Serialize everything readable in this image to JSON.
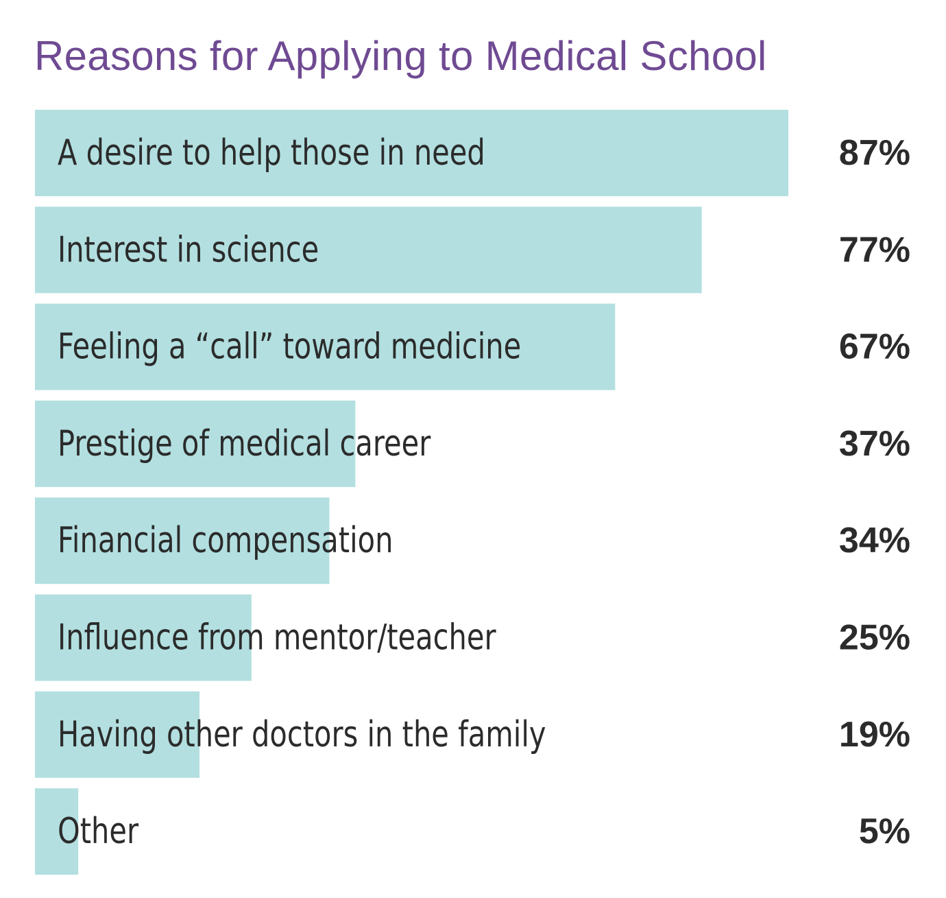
{
  "chart_data": {
    "type": "bar",
    "orientation": "horizontal",
    "title": "Reasons for Applying to Medical School",
    "categories": [
      "A desire to help those in need",
      "Interest in science",
      "Feeling a “call” toward medicine",
      "Prestige of medical career",
      "Financial compensation",
      "Influence from mentor/teacher",
      "Having other doctors in the family",
      "Other"
    ],
    "values": [
      87,
      77,
      67,
      37,
      34,
      25,
      19,
      5
    ],
    "value_labels": [
      "87%",
      "77%",
      "67%",
      "37%",
      "34%",
      "25%",
      "19%",
      "5%"
    ],
    "xlim": [
      0,
      100
    ],
    "grid": false,
    "legend": "none"
  },
  "colors": {
    "title": "#6f4a92",
    "bar": "#b3dfe0",
    "label": "#2b2b2b",
    "value": "#2b2b2b",
    "background": "#ffffff"
  }
}
